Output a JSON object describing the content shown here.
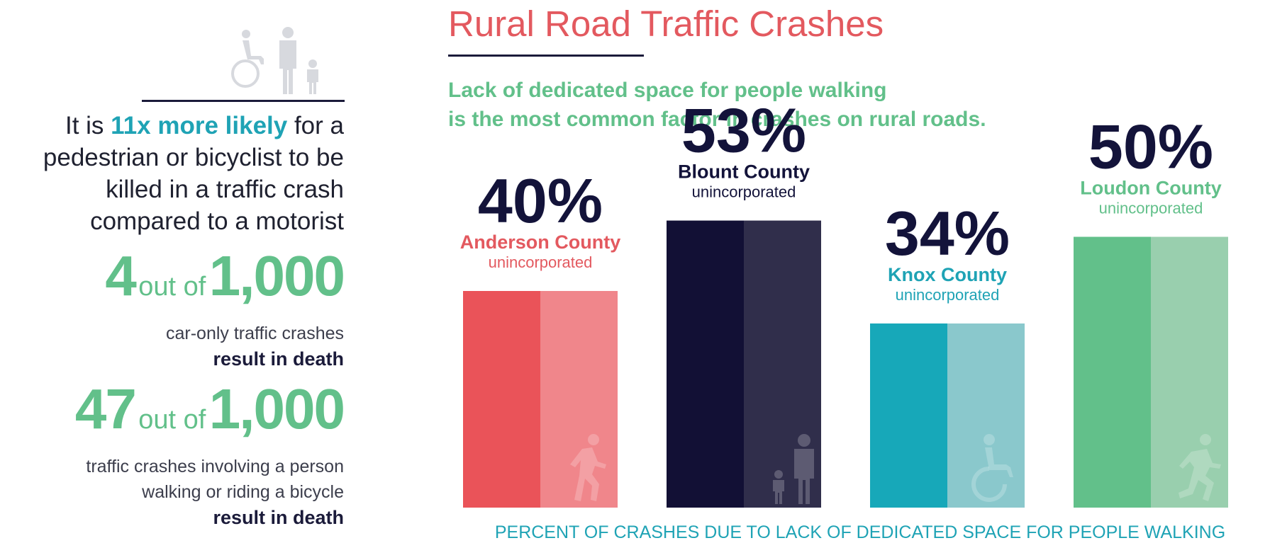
{
  "left": {
    "intro_prefix": "It is ",
    "intro_highlight": "11x more likely",
    "intro_suffix": " for a pedestrian or bicyclist to be killed in a traffic crash compared to a motorist",
    "stat1": {
      "count": "4",
      "out_of": "out of",
      "total": "1,000",
      "desc": "car-only traffic crashes",
      "emph": "result in death"
    },
    "stat2": {
      "count": "47",
      "out_of": "out of",
      "total": "1,000",
      "desc_line1": "traffic crashes involving a person",
      "desc_line2": "walking or riding a bicycle",
      "emph": "result in death"
    }
  },
  "chart": {
    "title": "Rural Road Traffic Crashes",
    "subtitle_line1": "Lack of dedicated space for people walking",
    "subtitle_line2": "is the most common factor in crashes on rural roads."
  },
  "chart_data": {
    "type": "bar",
    "title": "Rural Road Traffic Crashes",
    "xlabel": "PERCENT OF CRASHES DUE TO LACK OF DEDICATED SPACE FOR PEOPLE WALKING",
    "ylabel": "",
    "ylim": [
      0,
      100
    ],
    "unit": "%",
    "categories": [
      "Anderson County",
      "Blount County",
      "Knox County",
      "Loudon County"
    ],
    "sublabel": "unincorporated",
    "values": [
      40,
      53,
      34,
      50
    ],
    "value_labels": [
      "40%",
      "53%",
      "34%",
      "50%"
    ],
    "bar_colors": [
      {
        "dark": "#ea5359",
        "light": "#f0868b",
        "label": "#e3595f",
        "sub": "#e3595f"
      },
      {
        "dark": "#121035",
        "light": "#302e4b",
        "label": "#13133a",
        "sub": "#13133a"
      },
      {
        "dark": "#17a8b9",
        "light": "#8ac8cc",
        "label": "#1fa3b5",
        "sub": "#1fa3b5"
      },
      {
        "dark": "#62c08a",
        "light": "#99cfae",
        "label": "#62c08a",
        "sub": "#62c08a"
      }
    ],
    "bar_icons": [
      "walking-person-icon",
      "adult-with-child-icon",
      "wheelchair-user-icon",
      "running-person-icon"
    ],
    "grid": false,
    "legend": "none"
  }
}
